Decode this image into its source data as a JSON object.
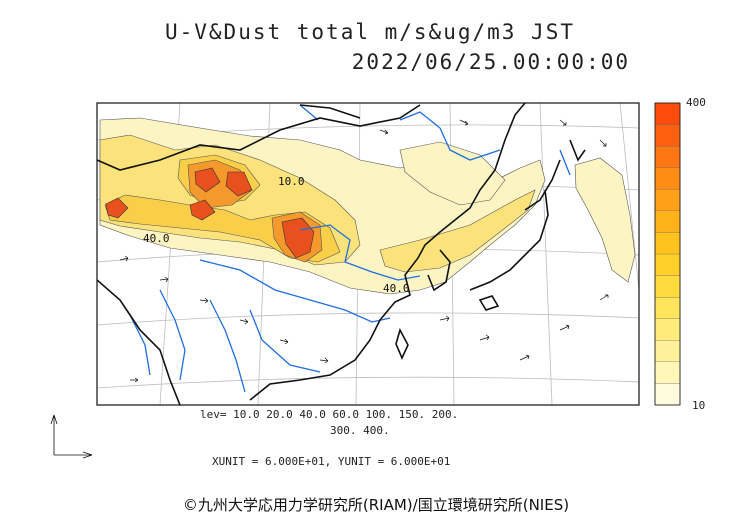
{
  "title": {
    "line1": "U-V&Dust total m/s&ug/m3 JST",
    "line2": "2022/06/25.00:00:00"
  },
  "colorbar": {
    "max_label": "400",
    "min_label": "10",
    "colors": [
      "#fffbdc",
      "#fff6b8",
      "#fff19a",
      "#ffec7a",
      "#ffe45c",
      "#ffdb3e",
      "#ffd02a",
      "#ffc21e",
      "#ffb21a",
      "#ffa016",
      "#ff8c14",
      "#ff7612",
      "#ff6010",
      "#ff4c0c"
    ]
  },
  "map": {
    "contour_labels": [
      "10.0",
      "40.0",
      "40.0"
    ],
    "colors": {
      "dust_light": "#fdf4c4",
      "dust_medium": "#fbe27a",
      "dust_strong": "#f9cf4a",
      "dust_high": "#f49a2c",
      "dust_peak": "#e8501e",
      "rivers": "#1f6fe0",
      "coast": "#000000"
    }
  },
  "legend": {
    "levels_line1": "lev= 10.0 20.0 40.0 60.0 100. 150. 200.",
    "levels_line2": "300. 400.",
    "units": "XUNIT = 6.000E+01, YUNIT = 6.000E+01"
  },
  "credit": "©九州大学応用力学研究所(RIAM)/国立環境研究所(NIES)"
}
